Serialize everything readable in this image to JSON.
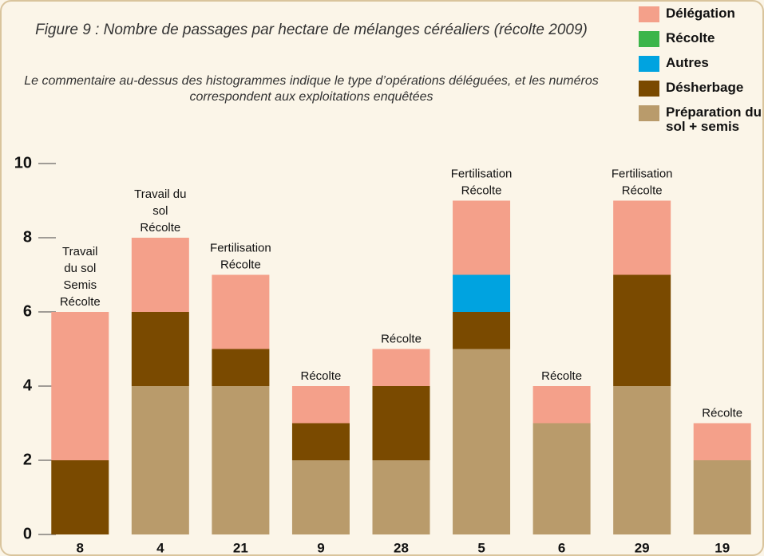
{
  "chart_data": {
    "type": "stacked_bar",
    "title": "Figure 9 : Nombre de passages par hectare de mélanges céréaliers (récolte 2009)",
    "subtitle": "Le commentaire au-dessus des histogrammes indique le type d’opérations déléguées, et les numéros correspondent aux exploitations enquêtées",
    "categories": [
      "8",
      "4",
      "21",
      "9",
      "28",
      "5",
      "6",
      "29",
      "19"
    ],
    "series": [
      {
        "name": "Préparation du sol + semis",
        "color": "#b99b6b",
        "values": [
          0,
          4,
          4,
          2,
          2,
          5,
          3,
          4,
          2
        ]
      },
      {
        "name": "Désherbage",
        "color": "#7a4a00",
        "values": [
          2,
          2,
          1,
          1,
          2,
          1,
          0,
          3,
          0
        ]
      },
      {
        "name": "Autres",
        "color": "#00a3e0",
        "values": [
          0,
          0,
          0,
          0,
          0,
          1,
          0,
          0,
          0
        ]
      },
      {
        "name": "Récolte",
        "color": "#3cb54a",
        "values": [
          0,
          0,
          0,
          0,
          0,
          0,
          0,
          0,
          0
        ]
      },
      {
        "name": "Délégation",
        "color": "#f4a08a",
        "values": [
          4,
          2,
          2,
          1,
          1,
          2,
          1,
          2,
          1
        ]
      }
    ],
    "annotations": [
      [
        "Travail",
        "du sol",
        "Semis",
        "Récolte"
      ],
      [
        "Travail du",
        "sol",
        "Récolte"
      ],
      [
        "Fertilisation",
        "Récolte"
      ],
      [
        "Récolte"
      ],
      [
        "Récolte"
      ],
      [
        "Fertilisation",
        "Récolte"
      ],
      [
        "Récolte"
      ],
      [
        "Fertilisation",
        "Récolte"
      ],
      [
        "Récolte"
      ]
    ],
    "ylim": [
      0,
      10
    ],
    "yticks": [
      0,
      2,
      4,
      6,
      8,
      10
    ]
  }
}
